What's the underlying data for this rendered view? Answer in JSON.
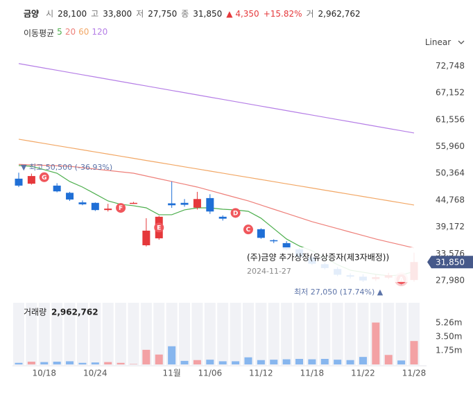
{
  "chart_data": {
    "type": "candlestick",
    "header": {
      "name": "금양",
      "fields": [
        {
          "label": "시",
          "value": "28,100"
        },
        {
          "label": "고",
          "value": "33,800"
        },
        {
          "label": "저",
          "value": "27,750"
        },
        {
          "label": "종",
          "value": "31,850"
        }
      ],
      "change": "▲ 4,350",
      "change_pct": "+15.82%",
      "volume": {
        "label": "거",
        "value": "2,962,762"
      }
    },
    "scale": "Linear",
    "categories": [
      null,
      null,
      "10/18",
      null,
      null,
      null,
      "10/24",
      null,
      null,
      null,
      null,
      null,
      "11월",
      null,
      null,
      "11/06",
      null,
      null,
      null,
      "11/12",
      null,
      null,
      null,
      "11/18",
      null,
      null,
      null,
      "11/22",
      null,
      null,
      null,
      "11/28"
    ],
    "open": [
      49250,
      48200,
      49800,
      47800,
      46300,
      44300,
      44200,
      42700,
      43100,
      44200,
      35350,
      36800,
      44100,
      44200,
      43200,
      45200,
      41300,
      42200,
      38800,
      38700,
      36400,
      35800,
      34500,
      32800,
      31400,
      30400,
      29100,
      28800,
      28300,
      28600,
      29000,
      28100
    ],
    "high": [
      50500,
      50300,
      50000,
      48300,
      46500,
      44700,
      44300,
      44000,
      43600,
      44400,
      41000,
      41500,
      48660,
      45000,
      46500,
      46000,
      41600,
      42500,
      39000,
      38900,
      36600,
      36200,
      34800,
      33200,
      31800,
      30800,
      29500,
      29300,
      29200,
      29600,
      29200,
      33800
    ],
    "low": [
      47500,
      48000,
      49000,
      46400,
      44600,
      43700,
      42500,
      42400,
      42800,
      44000,
      35100,
      36500,
      43160,
      43400,
      42800,
      41900,
      40500,
      41700,
      38200,
      36700,
      35800,
      34300,
      32700,
      31200,
      30300,
      28900,
      28400,
      27700,
      27900,
      28300,
      27050,
      27750
    ],
    "close": [
      47800,
      49800,
      49300,
      46600,
      44900,
      43900,
      42700,
      43000,
      43200,
      44200,
      38400,
      41300,
      43700,
      43800,
      45000,
      42400,
      40900,
      42000,
      38500,
      36900,
      36200,
      34500,
      33000,
      31500,
      30600,
      29200,
      28800,
      28000,
      28700,
      29100,
      27500,
      31850
    ],
    "up_color": "#e5383b",
    "down_color": "#1f6fd6",
    "ylim": [
      24650,
      77575
    ],
    "yticks": [
      {
        "value": 72748,
        "label": "72,748"
      },
      {
        "value": 67152,
        "label": "67,152"
      },
      {
        "value": 61556,
        "label": "61,556"
      },
      {
        "value": 55960,
        "label": "55,960"
      },
      {
        "value": 50364,
        "label": "50,364"
      },
      {
        "value": 44768,
        "label": "44,768"
      },
      {
        "value": 39172,
        "label": "39,172"
      },
      {
        "value": 33576,
        "label": "33,576"
      },
      {
        "value": 27980,
        "label": "27,980"
      }
    ],
    "moving_average": {
      "label": "이동평균",
      "series": [
        {
          "name": "5",
          "color": "#4cae4c",
          "values": [
            52000,
            51840,
            51120,
            50390,
            48660,
            47500,
            46060,
            44610,
            43890,
            43600,
            43160,
            41720,
            41720,
            42730,
            43160,
            43160,
            42870,
            42730,
            42440,
            41000,
            38830,
            36660,
            35210,
            34200,
            32750,
            31300,
            30150,
            29720,
            29280,
            29000,
            29140,
            29860
          ]
        },
        {
          "name": "20",
          "color": "#ee7f79",
          "values": [
            52230,
            52130,
            52030,
            51940,
            51840,
            51550,
            51260,
            50970,
            50680,
            50390,
            49810,
            49230,
            48660,
            48080,
            47500,
            46780,
            46050,
            45330,
            44610,
            43740,
            42870,
            42010,
            41140,
            40270,
            39550,
            38830,
            38100,
            37380,
            36660,
            36030,
            35410,
            34780
          ]
        },
        {
          "name": "60",
          "color": "#f2a765",
          "values": [
            57480,
            57040,
            56600,
            56150,
            55710,
            55270,
            54830,
            54380,
            53940,
            53500,
            53050,
            52610,
            52170,
            51720,
            51280,
            50840,
            50400,
            49950,
            49510,
            49070,
            48630,
            48180,
            47740,
            47300,
            46850,
            46410,
            45970,
            45530,
            45080,
            44640,
            44200,
            43750
          ]
        },
        {
          "name": "120",
          "color": "#b57ee6",
          "values": [
            73270,
            72800,
            72330,
            71870,
            71400,
            70930,
            70470,
            70000,
            69530,
            69060,
            68600,
            68130,
            67660,
            67200,
            66730,
            66260,
            65800,
            65330,
            64860,
            64390,
            63930,
            63460,
            62990,
            62530,
            62060,
            61590,
            61130,
            60660,
            60190,
            59720,
            59260,
            58790
          ]
        }
      ]
    },
    "max_label": "▼ 최고 50,500 (-36.93%)",
    "min_label": "최저 27,050 (17.74%) ▲",
    "last_price_label": "31,850",
    "events": [
      {
        "label": "G"
      },
      {
        "label": "F"
      },
      {
        "label": "E"
      },
      {
        "label": "D"
      },
      {
        "label": "C"
      },
      {
        "label": "A"
      }
    ],
    "tooltip": {
      "title": "(주)금양 추가상장(유상증자(제3자배정))",
      "date": "2024-11-27"
    },
    "volume": {
      "label": "거래량",
      "value_label": "2,962,762",
      "values": [
        200000,
        350000,
        300000,
        350000,
        400000,
        200000,
        250000,
        300000,
        200000,
        50000,
        1850000,
        1250000,
        2300000,
        450000,
        550000,
        600000,
        400000,
        400000,
        900000,
        550000,
        600000,
        650000,
        700000,
        650000,
        700000,
        600000,
        550000,
        950000,
        5300000,
        1200000,
        500000,
        2962762
      ],
      "up_color": "#f3a1a4",
      "down_color": "#87b6ee",
      "ylim": [
        0,
        7800000
      ],
      "yticks": [
        {
          "value": 5260000,
          "label": "5.26m"
        },
        {
          "value": 3500000,
          "label": "3.50m"
        },
        {
          "value": 1750000,
          "label": "1.75m"
        }
      ]
    }
  }
}
